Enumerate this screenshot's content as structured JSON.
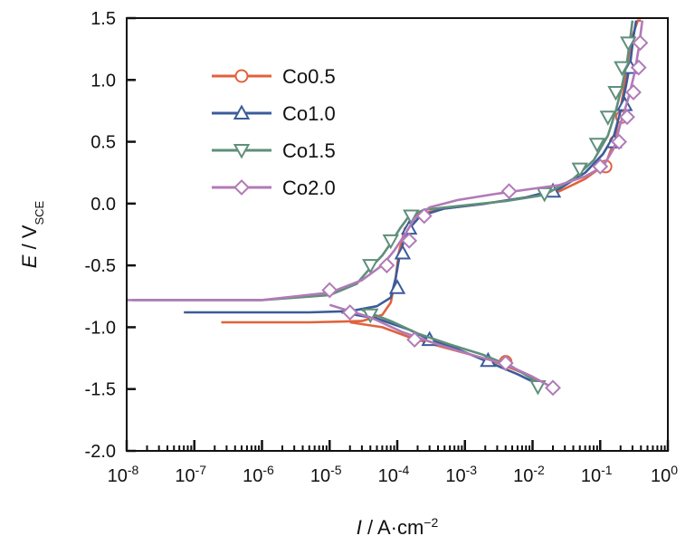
{
  "chart_data": {
    "type": "line",
    "xscale": "log",
    "xlim": [
      1e-08,
      1
    ],
    "ylim": [
      -2.0,
      1.5
    ],
    "x_ticks": [
      {
        "value": 1e-08,
        "base": "10",
        "exp": "-8"
      },
      {
        "value": 1e-07,
        "base": "10",
        "exp": "-7"
      },
      {
        "value": 1e-06,
        "base": "10",
        "exp": "-6"
      },
      {
        "value": 1e-05,
        "base": "10",
        "exp": "-5"
      },
      {
        "value": 0.0001,
        "base": "10",
        "exp": "-4"
      },
      {
        "value": 0.001,
        "base": "10",
        "exp": "-3"
      },
      {
        "value": 0.01,
        "base": "10",
        "exp": "-2"
      },
      {
        "value": 0.1,
        "base": "10",
        "exp": "-1"
      },
      {
        "value": 1,
        "base": "10",
        "exp": "0"
      }
    ],
    "y_ticks": [
      {
        "value": 1.5,
        "label": "1.5"
      },
      {
        "value": 1.0,
        "label": "1.0"
      },
      {
        "value": 0.5,
        "label": "0.5"
      },
      {
        "value": 0.0,
        "label": "0.0"
      },
      {
        "value": -0.5,
        "label": "-0.5"
      },
      {
        "value": -1.0,
        "label": "-1.0"
      },
      {
        "value": -1.5,
        "label": "-1.5"
      },
      {
        "value": -2.0,
        "label": "-2.0"
      }
    ],
    "xlabel": {
      "italic": "I",
      "rest": " / A·cm",
      "sup": "−2"
    },
    "ylabel": {
      "italic": "E",
      "rest": " / V",
      "sub": "SCE"
    },
    "legend_position": "top-left",
    "grid": false,
    "series": [
      {
        "name": "Co0.5",
        "color": "#e0623d",
        "marker": "circle",
        "x": [
          2.5e-07,
          5e-06,
          3e-05,
          6e-05,
          8e-05,
          9.5e-05,
          0.000105,
          0.00013,
          0.0002,
          0.0005,
          0.002,
          0.008,
          0.025,
          0.06,
          0.12,
          0.16,
          0.19,
          0.22,
          0.25,
          0.28,
          0.32,
          0.36,
          0.4
        ],
        "y": [
          -0.96,
          -0.96,
          -0.95,
          -0.9,
          -0.8,
          -0.6,
          -0.4,
          -0.2,
          -0.09,
          -0.04,
          0.0,
          0.05,
          0.1,
          0.2,
          0.32,
          0.5,
          0.7,
          0.9,
          1.1,
          1.3,
          1.4,
          1.48,
          1.48
        ],
        "markers": {
          "x": [
            0.12,
            0.17,
            0.21
          ],
          "y": [
            0.3,
            0.5,
            0.7
          ]
        }
      },
      {
        "name": "Co0.5-cathodic",
        "color": "#e0623d",
        "marker": "circle",
        "x": [
          2e-05,
          6e-05,
          0.00015,
          0.0004,
          0.0012,
          0.0035,
          0.008,
          0.014
        ],
        "y": [
          -0.96,
          -1.0,
          -1.08,
          -1.15,
          -1.22,
          -1.3,
          -1.38,
          -1.46
        ],
        "markers": {
          "x": [
            0.004
          ],
          "y": [
            -1.28
          ]
        }
      },
      {
        "name": "Co1.0",
        "color": "#3b5b9a",
        "marker": "triangle-up",
        "x": [
          7e-08,
          5e-06,
          2e-05,
          5e-05,
          8e-05,
          9.5e-05,
          0.00011,
          0.00014,
          0.00022,
          0.0005,
          0.002,
          0.008,
          0.025,
          0.06,
          0.11,
          0.16,
          0.2,
          0.24,
          0.28,
          0.31,
          0.34
        ],
        "y": [
          -0.88,
          -0.88,
          -0.87,
          -0.83,
          -0.76,
          -0.6,
          -0.4,
          -0.22,
          -0.1,
          -0.04,
          0.0,
          0.05,
          0.12,
          0.25,
          0.4,
          0.55,
          0.75,
          0.95,
          1.15,
          1.35,
          1.48
        ],
        "markers": {
          "x": [
            0.0001,
            0.00012,
            0.00015,
            0.02,
            0.16,
            0.23,
            0.28
          ],
          "y": [
            -0.68,
            -0.4,
            -0.2,
            0.1,
            0.5,
            0.8,
            1.1
          ]
        }
      },
      {
        "name": "Co1.0-cathodic",
        "color": "#3b5b9a",
        "marker": "triangle-up",
        "x": [
          1.5e-05,
          5e-05,
          0.00015,
          0.0003,
          0.0008,
          0.0022,
          0.006,
          0.012
        ],
        "y": [
          -0.88,
          -0.93,
          -1.02,
          -1.1,
          -1.18,
          -1.28,
          -1.38,
          -1.46
        ],
        "markers": {
          "x": [
            0.0003,
            0.0022
          ],
          "y": [
            -1.1,
            -1.27
          ]
        }
      },
      {
        "name": "Co1.5",
        "color": "#5f8f7a",
        "marker": "triangle-down",
        "x": [
          1.2e-08,
          1e-06,
          1e-05,
          2.5e-05,
          4e-05,
          6e-05,
          8e-05,
          0.00011,
          0.00015,
          0.00025,
          0.0008,
          0.004,
          0.015,
          0.04,
          0.08,
          0.13,
          0.17,
          0.21,
          0.25,
          0.28,
          0.3
        ],
        "y": [
          -0.78,
          -0.78,
          -0.74,
          -0.65,
          -0.52,
          -0.42,
          -0.32,
          -0.2,
          -0.1,
          -0.05,
          -0.02,
          0.02,
          0.07,
          0.2,
          0.35,
          0.55,
          0.75,
          0.95,
          1.15,
          1.35,
          1.48
        ],
        "markers": {
          "x": [
            4e-05,
            8e-05,
            0.00016,
            0.015,
            0.05,
            0.09,
            0.13,
            0.17,
            0.21,
            0.26
          ],
          "y": [
            -0.5,
            -0.3,
            -0.1,
            0.08,
            0.28,
            0.48,
            0.7,
            0.9,
            1.1,
            1.3
          ]
        }
      },
      {
        "name": "Co1.5-cathodic",
        "color": "#5f8f7a",
        "marker": "triangle-down",
        "x": [
          3e-05,
          8e-05,
          0.0002,
          0.0006,
          0.0018,
          0.005,
          0.01,
          0.013
        ],
        "y": [
          -0.86,
          -0.95,
          -1.05,
          -1.14,
          -1.22,
          -1.32,
          -1.42,
          -1.5
        ],
        "markers": {
          "x": [
            4e-05,
            0.012
          ],
          "y": [
            -0.9,
            -1.48
          ]
        }
      },
      {
        "name": "Co2.0",
        "color": "#b17ab8",
        "marker": "diamond",
        "x": [
          1e-08,
          1e-06,
          1e-05,
          3e-05,
          6e-05,
          9e-05,
          0.00013,
          0.00018,
          0.0003,
          0.0008,
          0.003,
          0.01,
          0.025,
          0.06,
          0.11,
          0.16,
          0.2,
          0.26,
          0.32,
          0.37,
          0.42
        ],
        "y": [
          -0.78,
          -0.78,
          -0.72,
          -0.62,
          -0.5,
          -0.38,
          -0.25,
          -0.12,
          -0.03,
          0.03,
          0.08,
          0.12,
          0.15,
          0.22,
          0.3,
          0.45,
          0.65,
          0.85,
          1.05,
          1.25,
          1.48
        ],
        "markers": {
          "x": [
            1e-05,
            7e-05,
            0.00015,
            0.00025,
            0.0045,
            0.1,
            0.19,
            0.25,
            0.31,
            0.37,
            0.39
          ],
          "y": [
            -0.7,
            -0.5,
            -0.3,
            -0.1,
            0.1,
            0.3,
            0.5,
            0.7,
            0.9,
            1.1,
            1.3
          ]
        }
      },
      {
        "name": "Co2.0-cathodic",
        "color": "#b17ab8",
        "marker": "diamond",
        "x": [
          1e-05,
          4e-05,
          0.00012,
          0.0004,
          0.0012,
          0.004,
          0.01,
          0.02
        ],
        "y": [
          -0.82,
          -0.92,
          -1.04,
          -1.14,
          -1.22,
          -1.3,
          -1.4,
          -1.49
        ],
        "markers": {
          "x": [
            2e-05,
            0.00018,
            0.004,
            0.02
          ],
          "y": [
            -0.88,
            -1.1,
            -1.29,
            -1.49
          ]
        }
      }
    ],
    "legend": [
      {
        "label": "Co0.5",
        "color": "#e0623d",
        "marker": "circle"
      },
      {
        "label": "Co1.0",
        "color": "#3b5b9a",
        "marker": "triangle-up"
      },
      {
        "label": "Co1.5",
        "color": "#5f8f7a",
        "marker": "triangle-down"
      },
      {
        "label": "Co2.0",
        "color": "#b17ab8",
        "marker": "diamond"
      }
    ]
  }
}
